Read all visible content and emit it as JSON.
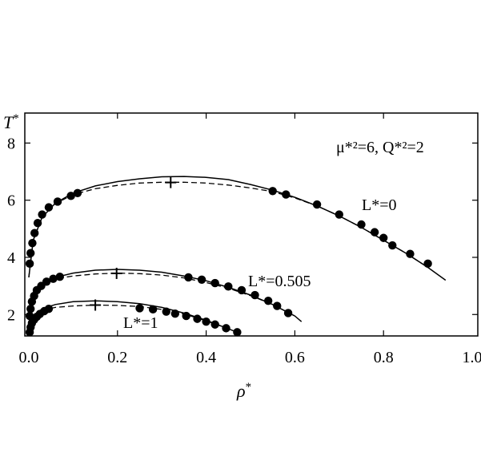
{
  "chart_data": {
    "type": "line",
    "xlabel": "ρ*",
    "ylabel": "T*",
    "xlim": [
      0.0,
      1.0
    ],
    "ylim": [
      1.25,
      9.05
    ],
    "xticks": [
      "0.0",
      "0.2",
      "0.4",
      "0.6",
      "0.8",
      "1.0"
    ],
    "yticks": [
      "2",
      "4",
      "6",
      "8"
    ],
    "grid": false,
    "legend": "none",
    "annotations": {
      "params": "μ*²=6, Q*²=2",
      "curve_l0": "L*=0",
      "curve_l0505": "L*=0.505",
      "curve_l1": "L*=1"
    },
    "series": [
      {
        "name": "L*=0",
        "solid": [
          [
            0.0,
            3.3
          ],
          [
            0.01,
            4.6
          ],
          [
            0.03,
            5.4
          ],
          [
            0.06,
            5.9
          ],
          [
            0.1,
            6.25
          ],
          [
            0.15,
            6.5
          ],
          [
            0.2,
            6.65
          ],
          [
            0.25,
            6.75
          ],
          [
            0.3,
            6.82
          ],
          [
            0.35,
            6.83
          ],
          [
            0.4,
            6.8
          ],
          [
            0.45,
            6.72
          ],
          [
            0.5,
            6.55
          ],
          [
            0.55,
            6.35
          ],
          [
            0.6,
            6.1
          ],
          [
            0.65,
            5.8
          ],
          [
            0.7,
            5.45
          ],
          [
            0.75,
            5.05
          ],
          [
            0.8,
            4.6
          ],
          [
            0.85,
            4.15
          ],
          [
            0.9,
            3.65
          ],
          [
            0.94,
            3.2
          ]
        ],
        "dashed": [
          [
            0.0,
            3.3
          ],
          [
            0.01,
            4.6
          ],
          [
            0.03,
            5.4
          ],
          [
            0.06,
            5.88
          ],
          [
            0.1,
            6.2
          ],
          [
            0.15,
            6.4
          ],
          [
            0.2,
            6.52
          ],
          [
            0.25,
            6.6
          ],
          [
            0.3,
            6.63
          ],
          [
            0.35,
            6.63
          ],
          [
            0.4,
            6.6
          ],
          [
            0.45,
            6.53
          ],
          [
            0.5,
            6.43
          ],
          [
            0.55,
            6.3
          ],
          [
            0.6,
            6.08
          ],
          [
            0.65,
            5.8
          ],
          [
            0.7,
            5.45
          ],
          [
            0.75,
            5.05
          ],
          [
            0.8,
            4.6
          ],
          [
            0.85,
            4.15
          ],
          [
            0.9,
            3.65
          ]
        ],
        "points": [
          [
            0.002,
            3.78
          ],
          [
            0.004,
            4.15
          ],
          [
            0.008,
            4.5
          ],
          [
            0.013,
            4.85
          ],
          [
            0.02,
            5.2
          ],
          [
            0.03,
            5.5
          ],
          [
            0.045,
            5.75
          ],
          [
            0.065,
            5.95
          ],
          [
            0.095,
            6.15
          ],
          [
            0.11,
            6.25
          ],
          [
            0.55,
            6.32
          ],
          [
            0.58,
            6.2
          ],
          [
            0.65,
            5.85
          ],
          [
            0.7,
            5.5
          ],
          [
            0.75,
            5.15
          ],
          [
            0.78,
            4.88
          ],
          [
            0.8,
            4.68
          ],
          [
            0.82,
            4.42
          ],
          [
            0.86,
            4.12
          ],
          [
            0.9,
            3.78
          ]
        ],
        "critical_point": [
          0.32,
          6.62
        ]
      },
      {
        "name": "L*=0.505",
        "solid": [
          [
            0.0,
            1.6
          ],
          [
            0.005,
            2.3
          ],
          [
            0.015,
            2.7
          ],
          [
            0.03,
            3.05
          ],
          [
            0.06,
            3.3
          ],
          [
            0.1,
            3.45
          ],
          [
            0.15,
            3.55
          ],
          [
            0.2,
            3.58
          ],
          [
            0.25,
            3.55
          ],
          [
            0.3,
            3.48
          ],
          [
            0.35,
            3.35
          ],
          [
            0.4,
            3.18
          ],
          [
            0.45,
            2.95
          ],
          [
            0.5,
            2.68
          ],
          [
            0.55,
            2.35
          ],
          [
            0.6,
            1.95
          ],
          [
            0.615,
            1.75
          ]
        ],
        "dashed": [
          [
            0.0,
            1.6
          ],
          [
            0.005,
            2.3
          ],
          [
            0.015,
            2.7
          ],
          [
            0.03,
            3.05
          ],
          [
            0.06,
            3.25
          ],
          [
            0.1,
            3.35
          ],
          [
            0.15,
            3.42
          ],
          [
            0.2,
            3.45
          ],
          [
            0.25,
            3.43
          ],
          [
            0.3,
            3.38
          ],
          [
            0.35,
            3.28
          ],
          [
            0.4,
            3.12
          ],
          [
            0.45,
            2.92
          ],
          [
            0.5,
            2.66
          ],
          [
            0.55,
            2.35
          ],
          [
            0.6,
            1.95
          ]
        ],
        "points": [
          [
            0.002,
            1.95
          ],
          [
            0.004,
            2.2
          ],
          [
            0.007,
            2.45
          ],
          [
            0.012,
            2.65
          ],
          [
            0.018,
            2.85
          ],
          [
            0.028,
            3.0
          ],
          [
            0.04,
            3.15
          ],
          [
            0.055,
            3.25
          ],
          [
            0.07,
            3.32
          ],
          [
            0.36,
            3.3
          ],
          [
            0.39,
            3.22
          ],
          [
            0.42,
            3.1
          ],
          [
            0.45,
            2.98
          ],
          [
            0.48,
            2.85
          ],
          [
            0.51,
            2.68
          ],
          [
            0.54,
            2.48
          ],
          [
            0.56,
            2.3
          ],
          [
            0.585,
            2.05
          ]
        ],
        "critical_point": [
          0.198,
          3.44
        ]
      },
      {
        "name": "L*=1",
        "solid": [
          [
            0.0,
            1.4
          ],
          [
            0.005,
            1.75
          ],
          [
            0.015,
            2.0
          ],
          [
            0.03,
            2.2
          ],
          [
            0.06,
            2.35
          ],
          [
            0.1,
            2.45
          ],
          [
            0.15,
            2.48
          ],
          [
            0.2,
            2.45
          ],
          [
            0.25,
            2.38
          ],
          [
            0.3,
            2.25
          ],
          [
            0.35,
            2.05
          ],
          [
            0.4,
            1.8
          ],
          [
            0.45,
            1.5
          ],
          [
            0.47,
            1.38
          ]
        ],
        "dashed": [
          [
            0.0,
            1.4
          ],
          [
            0.005,
            1.75
          ],
          [
            0.015,
            2.0
          ],
          [
            0.03,
            2.15
          ],
          [
            0.06,
            2.25
          ],
          [
            0.1,
            2.3
          ],
          [
            0.15,
            2.33
          ],
          [
            0.2,
            2.32
          ],
          [
            0.25,
            2.28
          ],
          [
            0.3,
            2.18
          ],
          [
            0.35,
            2.02
          ],
          [
            0.4,
            1.78
          ],
          [
            0.45,
            1.5
          ]
        ],
        "points": [
          [
            0.002,
            1.38
          ],
          [
            0.004,
            1.55
          ],
          [
            0.007,
            1.7
          ],
          [
            0.012,
            1.82
          ],
          [
            0.018,
            1.92
          ],
          [
            0.025,
            2.02
          ],
          [
            0.035,
            2.12
          ],
          [
            0.045,
            2.2
          ],
          [
            0.25,
            2.22
          ],
          [
            0.28,
            2.18
          ],
          [
            0.31,
            2.1
          ],
          [
            0.33,
            2.03
          ],
          [
            0.355,
            1.95
          ],
          [
            0.38,
            1.85
          ],
          [
            0.4,
            1.75
          ],
          [
            0.42,
            1.65
          ],
          [
            0.445,
            1.52
          ],
          [
            0.47,
            1.38
          ]
        ],
        "critical_point": [
          0.15,
          2.33
        ]
      }
    ]
  }
}
